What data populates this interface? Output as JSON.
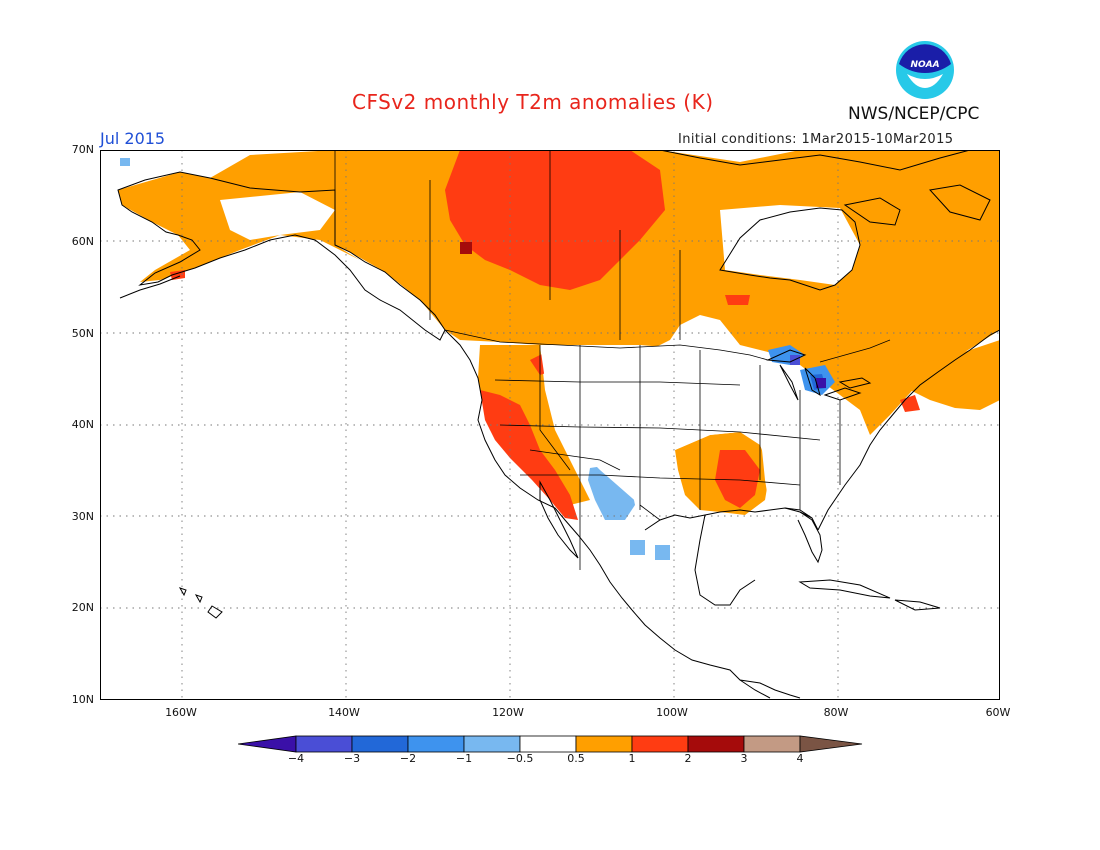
{
  "title": "CFSv2 monthly T2m anomalies (K)",
  "agency": "NWS/NCEP/CPC",
  "logo_text": "NOAA",
  "period": "Jul 2015",
  "initial_conditions": "Initial conditions: 1Mar2015-10Mar2015",
  "lat_labels": [
    "70N",
    "60N",
    "50N",
    "40N",
    "30N",
    "20N",
    "10N"
  ],
  "lon_labels": [
    "160W",
    "140W",
    "120W",
    "100W",
    "80W",
    "60W"
  ],
  "colorbar": {
    "labels": [
      "−4",
      "−3",
      "−2",
      "−1",
      "−0.5",
      "0.5",
      "1",
      "2",
      "3",
      "4"
    ],
    "colors": [
      "#3a10a8",
      "#4a4ed6",
      "#2268d8",
      "#3e93ee",
      "#78b8f0",
      "#ffffff",
      "#ff9f00",
      "#ff3c12",
      "#a50b0b",
      "#c39a84",
      "#7a5444"
    ]
  },
  "anomaly_colors": {
    "warm_0_5_to_1": "#ff9f00",
    "warm_1_to_2": "#ff3c12",
    "warm_2_to_3": "#a50b0b",
    "cool_m1_to_m0_5": "#78b8f0",
    "cool_m2_to_m1": "#3e93ee",
    "cool_m3_to_m2": "#2268d8",
    "cool_m4_to_m3": "#4a4ed6",
    "cool_below_m4": "#3a10a8"
  }
}
